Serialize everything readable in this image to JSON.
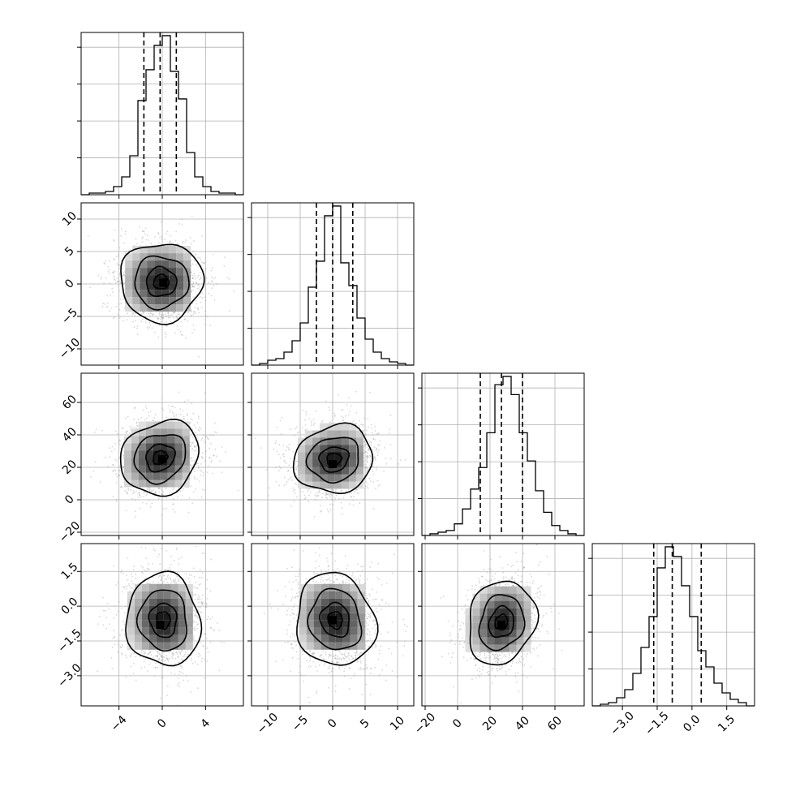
{
  "chart_data": {
    "type": "corner",
    "grid": true,
    "quantiles_marked": [
      0.16,
      0.5,
      0.84
    ],
    "parameters": [
      {
        "range": [
          -7.5,
          7.5
        ],
        "ticks": [
          -4,
          0,
          4
        ],
        "tick_labels": [
          "−4",
          "0",
          "4"
        ],
        "histogram": {
          "bin_edges": [
            -7.5,
            -6.75,
            -6.0,
            -5.25,
            -4.5,
            -3.75,
            -3.0,
            -2.25,
            -1.5,
            -0.75,
            0.0,
            0.75,
            1.5,
            2.25,
            3.0,
            3.75,
            4.5,
            5.25,
            6.0,
            6.75,
            7.5
          ],
          "values": [
            0,
            1,
            1,
            2,
            5,
            11,
            24,
            58,
            77,
            92,
            98,
            76,
            59,
            26,
            11,
            5,
            2,
            1,
            1,
            0
          ]
        },
        "quantiles": [
          -1.7,
          -0.2,
          1.3
        ]
      },
      {
        "range": [
          -12.5,
          12.5
        ],
        "ticks": [
          -10,
          -5,
          0,
          5,
          10
        ],
        "tick_labels": [
          "−10",
          "−5",
          "0",
          "5",
          "10"
        ],
        "histogram": {
          "bin_edges": [
            -12.5,
            -11.25,
            -10.0,
            -8.75,
            -7.5,
            -6.25,
            -5.0,
            -3.75,
            -2.5,
            -1.25,
            0.0,
            1.25,
            2.5,
            3.75,
            5.0,
            6.25,
            7.5,
            8.75,
            10.0,
            11.25,
            12.5
          ],
          "values": [
            0,
            1,
            3,
            4,
            8,
            15,
            26,
            48,
            64,
            92,
            98,
            63,
            49,
            29,
            16,
            8,
            4,
            2,
            1,
            0
          ]
        },
        "quantiles": [
          -2.5,
          0.0,
          3.1
        ]
      },
      {
        "range": [
          -22,
          78
        ],
        "ticks": [
          -20,
          0,
          20,
          40,
          60
        ],
        "tick_labels": [
          "−20",
          "0",
          "20",
          "40",
          "60"
        ],
        "histogram": {
          "bin_edges": [
            -22,
            -17,
            -12,
            -7,
            -2,
            3,
            8,
            13,
            18,
            23,
            28,
            33,
            38,
            43,
            48,
            53,
            58,
            63,
            68,
            73,
            78
          ],
          "values": [
            0,
            1,
            2,
            3,
            7,
            16,
            28,
            41,
            62,
            91,
            96,
            85,
            62,
            45,
            27,
            14,
            6,
            3,
            1,
            0
          ]
        },
        "quantiles": [
          14,
          27,
          40
        ]
      },
      {
        "range": [
          -4.3,
          2.7
        ],
        "ticks": [
          -3.0,
          -1.5,
          0.0,
          1.5
        ],
        "tick_labels": [
          "−3.0",
          "−1.5",
          "0.0",
          "1.5"
        ],
        "histogram": {
          "bin_edges": [
            -4.3,
            -3.95,
            -3.6,
            -3.25,
            -2.9,
            -2.55,
            -2.2,
            -1.85,
            -1.5,
            -1.15,
            -0.8,
            -0.45,
            -0.1,
            0.25,
            0.6,
            0.95,
            1.3,
            1.65,
            2.0,
            2.35,
            2.7
          ],
          "values": [
            0,
            1,
            2,
            5,
            10,
            20,
            36,
            55,
            85,
            98,
            92,
            74,
            55,
            34,
            24,
            14,
            8,
            4,
            2,
            0
          ]
        },
        "quantiles": [
          -1.65,
          -0.85,
          0.4
        ]
      }
    ],
    "pairs": [
      {
        "row": 1,
        "col": 0,
        "center": [
          -0.1,
          0.3
        ],
        "spread": [
          2.0,
          3.2
        ],
        "tilt": 0,
        "peak": [
          0.1,
          0.2
        ]
      },
      {
        "row": 2,
        "col": 0,
        "center": [
          -0.2,
          26
        ],
        "spread": [
          1.9,
          12
        ],
        "tilt": -0.15,
        "peak": [
          0.0,
          25
        ]
      },
      {
        "row": 2,
        "col": 1,
        "center": [
          0.2,
          25
        ],
        "spread": [
          3.2,
          11
        ],
        "tilt": -0.1,
        "peak": [
          0.0,
          22
        ]
      },
      {
        "row": 3,
        "col": 0,
        "center": [
          0.1,
          -0.6
        ],
        "spread": [
          1.8,
          1.05
        ],
        "tilt": 0.05,
        "peak": [
          -0.2,
          -0.8
        ]
      },
      {
        "row": 3,
        "col": 1,
        "center": [
          0.4,
          -0.6
        ],
        "spread": [
          3.2,
          1.05
        ],
        "tilt": 0.1,
        "peak": [
          0.0,
          -0.6
        ]
      },
      {
        "row": 3,
        "col": 2,
        "center": [
          27,
          -0.7
        ],
        "spread": [
          11,
          0.95
        ],
        "tilt": -0.15,
        "peak": [
          27,
          -0.8
        ]
      }
    ],
    "contour_levels": [
      0.35,
      0.7,
      1.25,
      1.9
    ]
  }
}
